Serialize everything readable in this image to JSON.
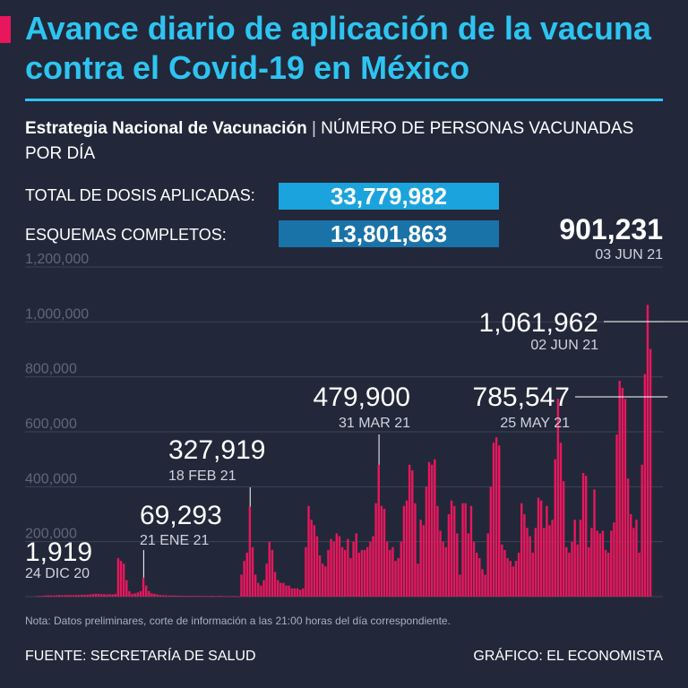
{
  "header": {
    "title": "Avance diario de aplicación de la vacuna contra el Covid-19 en México",
    "subtitle_bold": "Estrategia Nacional de Vacunación",
    "subtitle_sep": "|",
    "subtitle_rest": "NÚMERO DE PERSONAS VACUNADAS POR DÍA"
  },
  "stats": {
    "total_label": "TOTAL DE DOSIS APLICADAS:",
    "total_value": "33,779,982",
    "complete_label": "ESQUEMAS COMPLETOS:",
    "complete_value": "13,801,863"
  },
  "footer": {
    "note": "Nota: Datos preliminares, corte de información a las 21:00 horas del día correspondiente.",
    "source": "FUENTE: SECRETARÍA DE SALUD",
    "credit": "GRÁFICO: EL ECONOMISTA"
  },
  "colors": {
    "background": "#222839",
    "title": "#2ec4f1",
    "bar": "#e8175d",
    "total_box": "#1aa3dc",
    "complete_box": "#1a73a8",
    "grid": "#3c4458",
    "axis_text": "#5f6779"
  },
  "chart_data": {
    "type": "bar",
    "title": "",
    "xlabel": "",
    "ylabel": "",
    "ylim": [
      0,
      1200000
    ],
    "grid": true,
    "yticks": [
      {
        "value": 0,
        "label": "0"
      },
      {
        "value": 200000,
        "label": "200,000"
      },
      {
        "value": 400000,
        "label": "400,000"
      },
      {
        "value": 600000,
        "label": "600,000"
      },
      {
        "value": 800000,
        "label": "800,000"
      },
      {
        "value": 1000000,
        "label": "1,000,000"
      },
      {
        "value": 1200000,
        "label": "1,200,000"
      }
    ],
    "x_start": "24 DIC 20",
    "x_end": "03 JUN 21",
    "values": [
      1919,
      2000,
      3000,
      4000,
      5000,
      4500,
      4000,
      5000,
      6000,
      5000,
      5500,
      6000,
      6000,
      5500,
      6500,
      6000,
      7000,
      6500,
      7000,
      8000,
      9000,
      10000,
      10000,
      9000,
      9000,
      8000,
      9000,
      8000,
      10000,
      140000,
      130000,
      120000,
      60000,
      20000,
      10000,
      12000,
      15000,
      20000,
      69293,
      40000,
      20000,
      12000,
      10000,
      8000,
      6000,
      5000,
      5000,
      4000,
      4000,
      4000,
      3500,
      3500,
      3000,
      3000,
      3000,
      2500,
      3000,
      2500,
      2500,
      2500,
      2500,
      2000,
      3000,
      2500,
      2000,
      3000,
      2500,
      2000,
      1500,
      2000,
      2000,
      1500,
      1000,
      80000,
      130000,
      160000,
      327919,
      180000,
      80000,
      50000,
      40000,
      60000,
      120000,
      200000,
      170000,
      90000,
      60000,
      50000,
      50000,
      40000,
      40000,
      30000,
      30000,
      30000,
      25000,
      30000,
      180000,
      330000,
      280000,
      260000,
      220000,
      150000,
      120000,
      110000,
      170000,
      210000,
      200000,
      230000,
      220000,
      180000,
      170000,
      210000,
      140000,
      200000,
      230000,
      160000,
      170000,
      170000,
      180000,
      200000,
      220000,
      340000,
      479900,
      330000,
      320000,
      200000,
      170000,
      180000,
      130000,
      140000,
      200000,
      330000,
      350000,
      480000,
      460000,
      340000,
      120000,
      280000,
      260000,
      400000,
      490000,
      480000,
      500000,
      330000,
      240000,
      200000,
      180000,
      300000,
      350000,
      330000,
      230000,
      80000,
      340000,
      340000,
      230000,
      330000,
      200000,
      160000,
      140000,
      100000,
      80000,
      230000,
      400000,
      560000,
      580000,
      550000,
      190000,
      170000,
      140000,
      130000,
      110000,
      130000,
      160000,
      340000,
      300000,
      250000,
      220000,
      160000,
      250000,
      360000,
      350000,
      250000,
      330000,
      260000,
      280000,
      500000,
      720000,
      560000,
      420000,
      180000,
      160000,
      200000,
      280000,
      190000,
      280000,
      450000,
      440000,
      180000,
      250000,
      390000,
      240000,
      230000,
      240000,
      170000,
      160000,
      240000,
      270000,
      590000,
      785547,
      760000,
      720000,
      430000,
      300000,
      250000,
      280000,
      160000,
      480000,
      810000,
      1061962,
      901231
    ],
    "annotations": [
      {
        "index": 0,
        "value": "1,919",
        "date": "24 DIC 20"
      },
      {
        "index": 38,
        "value": "69,293",
        "date": "21 ENE 21"
      },
      {
        "index": 76,
        "value": "327,919",
        "date": "18 FEB 21"
      },
      {
        "index": 122,
        "value": "479,900",
        "date": "31 MAR 21"
      },
      {
        "index": 225,
        "value": "785,547",
        "date": "25 MAY 21"
      },
      {
        "index": 236,
        "value": "1,061,962",
        "date": "02 JUN 21"
      },
      {
        "index": 237,
        "value": "901,231",
        "date": "03 JUN 21"
      }
    ]
  }
}
